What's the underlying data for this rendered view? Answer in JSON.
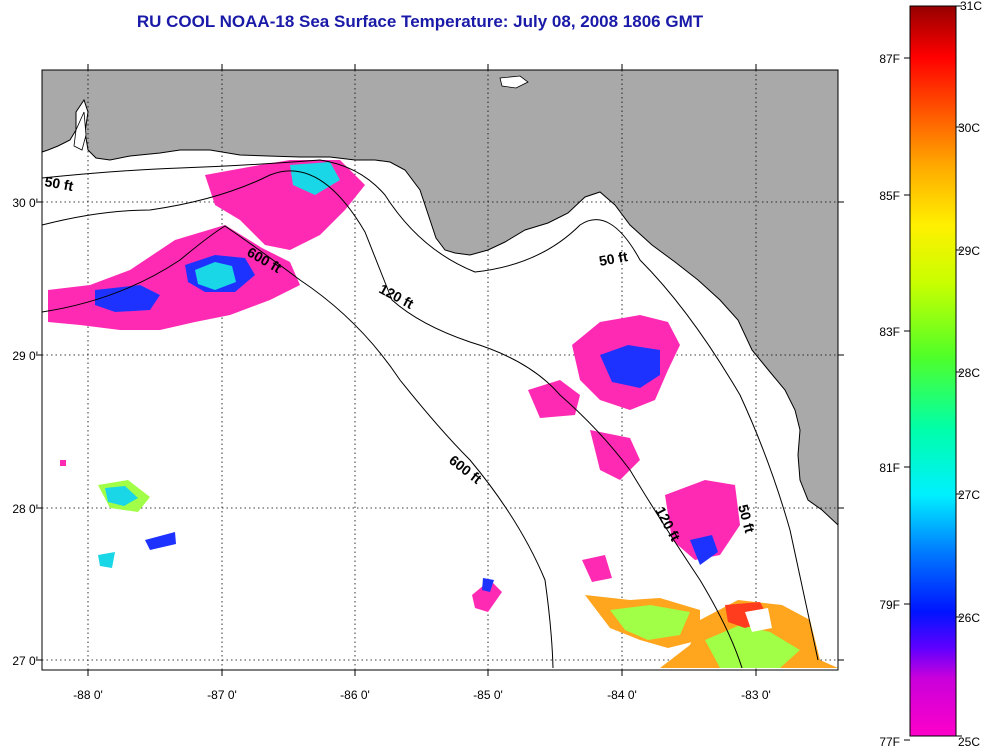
{
  "title": "RU COOL  NOAA-18  Sea Surface Temperature:  July 08, 2008 1806 GMT",
  "map": {
    "lon_ticks": [
      "-88 0'",
      "-87 0'",
      "-86 0'",
      "-85 0'",
      "-84 0'",
      "-83 0'"
    ],
    "lat_ticks": [
      "30 0'",
      "29 0'",
      "28 0'",
      "27 0'"
    ],
    "contours": [
      {
        "label": "50 ft",
        "where": "western shelf"
      },
      {
        "label": "600 ft",
        "where": "upper"
      },
      {
        "label": "120 ft",
        "where": "mid"
      },
      {
        "label": "50 ft",
        "where": "big bend"
      },
      {
        "label": "600 ft",
        "where": "central"
      },
      {
        "label": "120 ft",
        "where": "south"
      },
      {
        "label": "50 ft",
        "where": "south coast"
      }
    ]
  },
  "colorbar": {
    "c_labels": [
      "31C",
      "30C",
      "29C",
      "28C",
      "27C",
      "26C",
      "25C"
    ],
    "f_labels": [
      "87F",
      "85F",
      "83F",
      "81F",
      "79F",
      "77F"
    ]
  },
  "colors": {
    "title": "#1a1aa8",
    "land": "#a9a9a9",
    "pink": "#ff2ab4",
    "blue": "#1e32ff",
    "cyan": "#19d7e6",
    "green": "#a0ff46",
    "orange": "#ffa51e"
  }
}
